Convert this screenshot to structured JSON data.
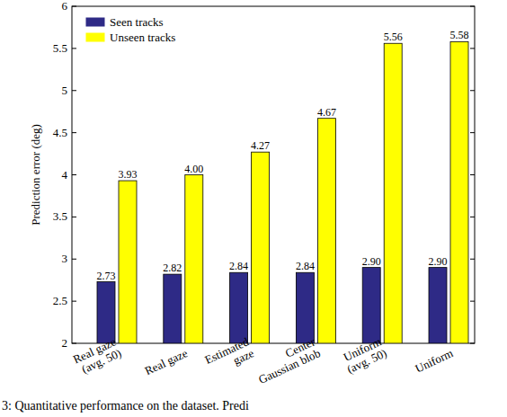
{
  "chart_data": {
    "type": "bar",
    "y_label": "Prediction error (deg)",
    "categories": [
      "Real gaze\n(avg. 50)",
      "Real gaze",
      "Estimated\ngaze",
      "Center\nGaussian blob",
      "Uniform\n(avg. 50)",
      "Uniform"
    ],
    "series": [
      {
        "name": "Seen tracks",
        "color": "#2e2a86",
        "values": [
          2.73,
          2.82,
          2.84,
          2.84,
          2.9,
          2.9
        ],
        "value_labels": [
          "2.73",
          "2.82",
          "2.84",
          "2.84",
          "2.90",
          "2.90"
        ]
      },
      {
        "name": "Unseen tracks",
        "color": "#ffff00",
        "values": [
          3.93,
          4.0,
          4.27,
          4.67,
          5.56,
          5.58
        ],
        "value_labels": [
          "3.93",
          "4.00",
          "4.27",
          "4.67",
          "5.56",
          "5.58"
        ]
      }
    ],
    "ylim": [
      2,
      6
    ],
    "yticks": [
      2,
      2.5,
      3,
      3.5,
      4,
      4.5,
      5,
      5.5,
      6
    ],
    "data_labels": true,
    "legend": "upper-left",
    "grid": false,
    "annotations": [
      "3: Quantitative performance on the dataset. Predi"
    ]
  }
}
